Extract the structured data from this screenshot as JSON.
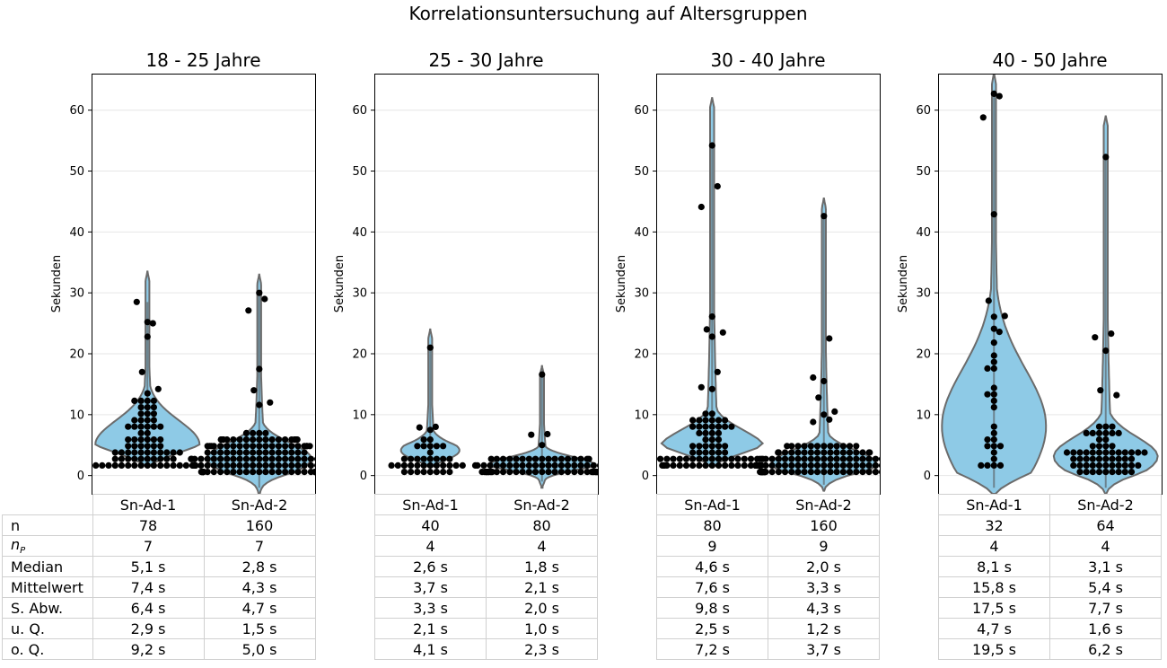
{
  "figure_title": "Korrelationsuntersuchung auf Altersgruppen",
  "ylabel": "Sekunden",
  "yticks": [
    0,
    10,
    20,
    30,
    40,
    50,
    60
  ],
  "ylim": [
    -3,
    66
  ],
  "colors": {
    "violin_fill": "#8ecae6",
    "violin_edge": "#6b6b6b",
    "point": "#000000",
    "grid": "#e6e6e6",
    "table_border": "#d0d0d0"
  },
  "row_labels": [
    "n",
    "nP",
    "Median",
    "Mittelwert",
    "S. Abw.",
    "u. Q.",
    "o. Q."
  ],
  "chart_data": [
    {
      "type": "violin-swarm",
      "title": "18 - 25 Jahre",
      "categories": [
        "Sn-Ad-1",
        "Sn-Ad-2"
      ],
      "ylabel": "Sekunden",
      "ylim": [
        -3,
        66
      ],
      "grid": "horizontal",
      "violin_range": [
        [
          1.5,
          33.5
        ],
        [
          -3,
          33
        ]
      ],
      "series": [
        {
          "name": "Sn-Ad-1",
          "n": 78,
          "median": 5.1,
          "upper_quartile": 9.2,
          "max": 28.5,
          "outliers": [
            25.2,
            25.0,
            28.5,
            22.8,
            17.0,
            14.2,
            13.5
          ]
        },
        {
          "name": "Sn-Ad-2",
          "n": 160,
          "median": 2.8,
          "upper_quartile": 5.0,
          "max": 30.0,
          "outliers": [
            30.0,
            29.0,
            27.1,
            17.5,
            14.0,
            12.0,
            11.6
          ]
        }
      ],
      "table": {
        "n": [
          "78",
          "160"
        ],
        "nP": [
          "7",
          "7"
        ],
        "Median": [
          "5,1 s",
          "2,8 s"
        ],
        "Mittelwert": [
          "7,4 s",
          "4,3 s"
        ],
        "S. Abw.": [
          "6,4 s",
          "4,7 s"
        ],
        "u. Q.": [
          "2,9 s",
          "1,5 s"
        ],
        "o. Q.": [
          "9,2 s",
          "5,0 s"
        ]
      }
    },
    {
      "type": "violin-swarm",
      "title": "25 - 30 Jahre",
      "categories": [
        "Sn-Ad-1",
        "Sn-Ad-2"
      ],
      "ylabel": "Sekunden",
      "ylim": [
        -3,
        66
      ],
      "grid": "horizontal",
      "violin_range": [
        [
          1.5,
          24
        ],
        [
          -2,
          18
        ]
      ],
      "series": [
        {
          "name": "Sn-Ad-1",
          "n": 40,
          "median": 2.6,
          "upper_quartile": 4.1,
          "max": 21.0,
          "outliers": [
            21.0,
            8.0,
            7.9,
            7.5
          ]
        },
        {
          "name": "Sn-Ad-2",
          "n": 80,
          "median": 1.8,
          "upper_quartile": 2.3,
          "max": 16.6,
          "outliers": [
            16.6,
            6.8,
            6.7,
            5.0
          ]
        }
      ],
      "table": {
        "n": [
          "40",
          "80"
        ],
        "nP": [
          "4",
          "4"
        ],
        "Median": [
          "2,6 s",
          "1,8 s"
        ],
        "Mittelwert": [
          "3,7 s",
          "2,1 s"
        ],
        "S. Abw.": [
          "3,3 s",
          "2,0 s"
        ],
        "u. Q.": [
          "2,1 s",
          "1,0 s"
        ],
        "o. Q.": [
          "4,1 s",
          "2,3 s"
        ]
      }
    },
    {
      "type": "violin-swarm",
      "title": "30 - 40 Jahre",
      "categories": [
        "Sn-Ad-1",
        "Sn-Ad-2"
      ],
      "ylabel": "Sekunden",
      "ylim": [
        -3,
        66
      ],
      "grid": "horizontal",
      "violin_range": [
        [
          1.5,
          62
        ],
        [
          -2.5,
          45.5
        ]
      ],
      "series": [
        {
          "name": "Sn-Ad-1",
          "n": 80,
          "median": 4.6,
          "upper_quartile": 7.2,
          "max": 54.2,
          "outliers": [
            54.2,
            47.5,
            44.1,
            26.1,
            24.0,
            23.5,
            22.8,
            17.0,
            14.5,
            14.2
          ]
        },
        {
          "name": "Sn-Ad-2",
          "n": 160,
          "median": 2.0,
          "upper_quartile": 3.7,
          "max": 42.6,
          "outliers": [
            42.6,
            22.5,
            16.1,
            15.5,
            12.8,
            10.5,
            10.0,
            9.2,
            8.8
          ]
        }
      ],
      "table": {
        "n": [
          "80",
          "160"
        ],
        "nP": [
          "9",
          "9"
        ],
        "Median": [
          "4,6 s",
          "2,0 s"
        ],
        "Mittelwert": [
          "7,6 s",
          "3,3 s"
        ],
        "S. Abw.": [
          "9,8 s",
          "4,3 s"
        ],
        "u. Q.": [
          "2,5 s",
          "1,2 s"
        ],
        "o. Q.": [
          "7,2 s",
          "3,7 s"
        ]
      }
    },
    {
      "type": "violin-swarm",
      "title": "40 - 50 Jahre",
      "categories": [
        "Sn-Ad-1",
        "Sn-Ad-2"
      ],
      "ylabel": "Sekunden",
      "ylim": [
        -3,
        66
      ],
      "grid": "horizontal",
      "violin_range": [
        [
          -3,
          66
        ],
        [
          -3,
          59
        ]
      ],
      "series": [
        {
          "name": "Sn-Ad-1",
          "n": 32,
          "median": 8.1,
          "upper_quartile": 19.5,
          "max": 62.7,
          "outliers": [
            62.7,
            62.3,
            58.8,
            42.9,
            28.7,
            26.2,
            24.1,
            23.6
          ]
        },
        {
          "name": "Sn-Ad-2",
          "n": 64,
          "median": 3.1,
          "upper_quartile": 6.2,
          "max": 52.3,
          "outliers": [
            52.3,
            23.3,
            22.7,
            20.5,
            14.0,
            13.2
          ]
        }
      ],
      "table": {
        "n": [
          "32",
          "64"
        ],
        "nP": [
          "4",
          "4"
        ],
        "Median": [
          "8,1 s",
          "3,1 s"
        ],
        "Mittelwert": [
          "15,8 s",
          "5,4 s"
        ],
        "S. Abw.": [
          "17,5 s",
          "7,7 s"
        ],
        "u. Q.": [
          "4,7 s",
          "1,6 s"
        ],
        "o. Q.": [
          "19,5 s",
          "6,2 s"
        ]
      }
    }
  ]
}
